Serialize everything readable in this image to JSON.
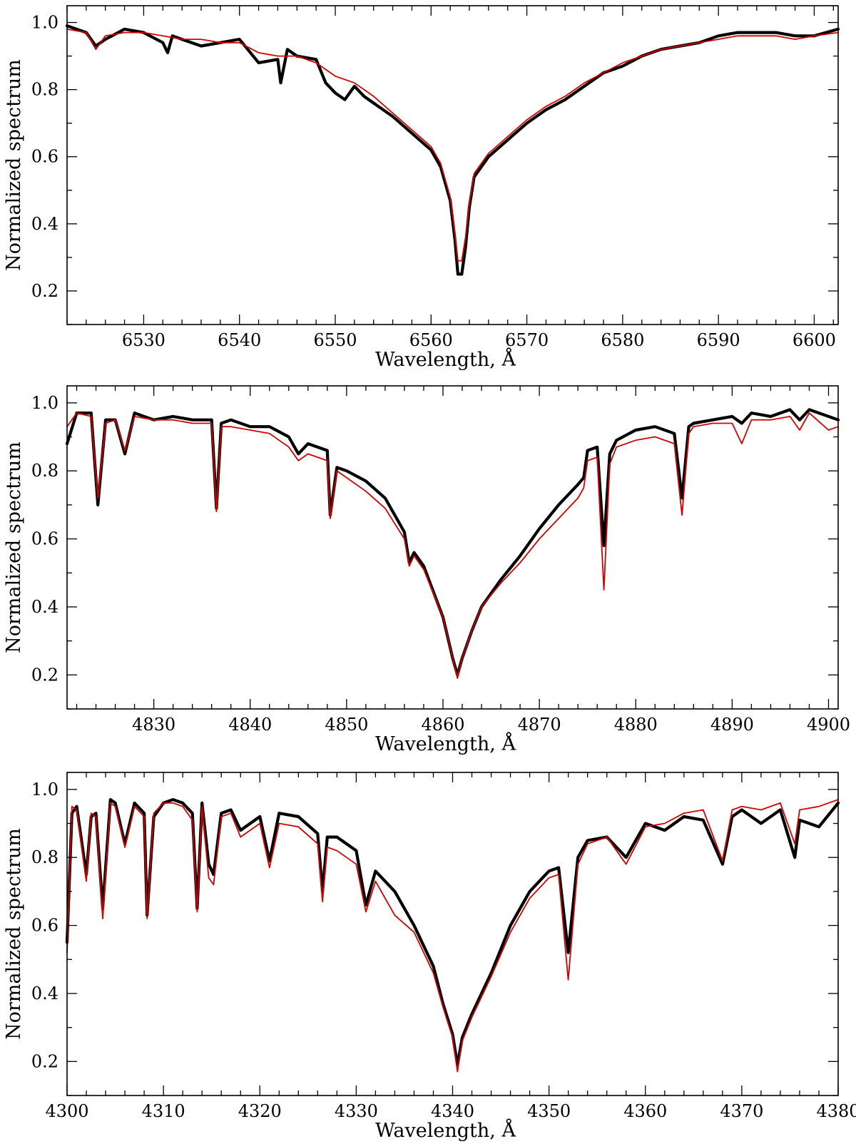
{
  "chart_data": [
    {
      "type": "line",
      "title": "",
      "xlabel": "Wavelength, Å",
      "ylabel": "Normalized spectrum",
      "xlim": [
        6522,
        6602.5
      ],
      "ylim": [
        0.1,
        1.05
      ],
      "xticks": [
        6530,
        6540,
        6550,
        6560,
        6570,
        6580,
        6590,
        6600
      ],
      "xtick_labels": [
        "6530",
        "6540",
        "6550",
        "6560",
        "6570",
        "6580",
        "6590",
        "6600"
      ],
      "yticks": [
        0.2,
        0.4,
        0.6,
        0.8,
        1.0
      ],
      "ytick_labels": [
        "0.2",
        "0.4",
        "0.6",
        "0.8",
        "1.0"
      ],
      "grid": false,
      "legend": null,
      "series": [
        {
          "role": "observed",
          "color": "#000000",
          "x": [
            6522,
            6524,
            6525,
            6526,
            6528,
            6530,
            6532,
            6532.5,
            6533,
            6534,
            6536,
            6538,
            6540,
            6542,
            6544,
            6544.3,
            6545,
            6546,
            6548,
            6549,
            6550,
            6551,
            6552,
            6553,
            6554,
            6556,
            6558,
            6560,
            6561,
            6562,
            6562.5,
            6562.8,
            6563.2,
            6563.6,
            6564,
            6564.5,
            6566,
            6568,
            6570,
            6572,
            6574,
            6575,
            6576,
            6578,
            6580,
            6582,
            6584,
            6586,
            6588,
            6590,
            6592,
            6594,
            6596,
            6598,
            6600,
            6602.5
          ],
          "y": [
            0.99,
            0.97,
            0.93,
            0.95,
            0.98,
            0.97,
            0.94,
            0.91,
            0.96,
            0.95,
            0.93,
            0.94,
            0.95,
            0.88,
            0.89,
            0.82,
            0.92,
            0.9,
            0.89,
            0.82,
            0.79,
            0.77,
            0.81,
            0.78,
            0.76,
            0.72,
            0.67,
            0.62,
            0.57,
            0.47,
            0.35,
            0.25,
            0.25,
            0.33,
            0.45,
            0.54,
            0.6,
            0.65,
            0.7,
            0.74,
            0.77,
            0.79,
            0.81,
            0.85,
            0.87,
            0.9,
            0.92,
            0.93,
            0.94,
            0.96,
            0.97,
            0.97,
            0.97,
            0.96,
            0.96,
            0.98
          ]
        },
        {
          "role": "model",
          "color": "#d40000",
          "x": [
            6522,
            6524,
            6525,
            6526,
            6528,
            6530,
            6532,
            6534,
            6536,
            6538,
            6540,
            6542,
            6544,
            6546,
            6548,
            6550,
            6552,
            6554,
            6556,
            6558,
            6560,
            6561,
            6562,
            6562.5,
            6562.8,
            6563.2,
            6563.6,
            6564,
            6564.5,
            6566,
            6568,
            6570,
            6572,
            6574,
            6576,
            6578,
            6580,
            6582,
            6584,
            6586,
            6588,
            6590,
            6592,
            6594,
            6596,
            6598,
            6600,
            6602.5
          ],
          "y": [
            0.98,
            0.97,
            0.92,
            0.96,
            0.97,
            0.97,
            0.96,
            0.95,
            0.95,
            0.94,
            0.94,
            0.91,
            0.9,
            0.9,
            0.88,
            0.84,
            0.82,
            0.78,
            0.73,
            0.68,
            0.63,
            0.58,
            0.48,
            0.37,
            0.29,
            0.29,
            0.36,
            0.46,
            0.55,
            0.61,
            0.66,
            0.71,
            0.75,
            0.78,
            0.82,
            0.85,
            0.88,
            0.9,
            0.92,
            0.93,
            0.94,
            0.95,
            0.96,
            0.96,
            0.96,
            0.95,
            0.96,
            0.97
          ]
        }
      ]
    },
    {
      "type": "line",
      "title": "",
      "xlabel": "Wavelength, Å",
      "ylabel": "Normalized spectrum",
      "xlim": [
        4821,
        4901
      ],
      "ylim": [
        0.1,
        1.05
      ],
      "xticks": [
        4830,
        4840,
        4850,
        4860,
        4870,
        4880,
        4890,
        4900
      ],
      "xtick_labels": [
        "4830",
        "4840",
        "4850",
        "4860",
        "4870",
        "4880",
        "4890",
        "4900"
      ],
      "yticks": [
        0.2,
        0.4,
        0.6,
        0.8,
        1.0
      ],
      "ytick_labels": [
        "0.2",
        "0.4",
        "0.6",
        "0.8",
        "1.0"
      ],
      "grid": false,
      "legend": null,
      "series": [
        {
          "role": "observed",
          "color": "#000000",
          "x": [
            4821,
            4822,
            4823.5,
            4824.2,
            4825,
            4826,
            4827,
            4828,
            4830,
            4832,
            4834,
            4836,
            4836.5,
            4837,
            4838,
            4840,
            4842,
            4844,
            4845,
            4846,
            4848,
            4848.3,
            4849,
            4850,
            4852,
            4854,
            4856,
            4856.5,
            4857,
            4858,
            4860,
            4861,
            4861.5,
            4862,
            4863,
            4864,
            4866,
            4868,
            4870,
            4872,
            4874,
            4874.6,
            4875,
            4876,
            4876.7,
            4877.3,
            4878,
            4880,
            4882,
            4884,
            4884.8,
            4885.5,
            4886,
            4888,
            4890,
            4891,
            4892,
            4894,
            4896,
            4897,
            4898,
            4900,
            4901
          ],
          "y": [
            0.88,
            0.97,
            0.97,
            0.7,
            0.95,
            0.95,
            0.85,
            0.97,
            0.95,
            0.96,
            0.95,
            0.95,
            0.69,
            0.94,
            0.95,
            0.93,
            0.93,
            0.9,
            0.85,
            0.88,
            0.86,
            0.67,
            0.81,
            0.8,
            0.77,
            0.72,
            0.62,
            0.53,
            0.56,
            0.52,
            0.37,
            0.25,
            0.2,
            0.25,
            0.33,
            0.4,
            0.48,
            0.55,
            0.63,
            0.7,
            0.76,
            0.78,
            0.86,
            0.87,
            0.58,
            0.85,
            0.89,
            0.92,
            0.93,
            0.91,
            0.72,
            0.93,
            0.94,
            0.95,
            0.96,
            0.94,
            0.97,
            0.96,
            0.98,
            0.95,
            0.98,
            0.96,
            0.95
          ]
        },
        {
          "role": "model",
          "color": "#d40000",
          "x": [
            4821,
            4822,
            4823.5,
            4824.2,
            4825,
            4826,
            4827,
            4828,
            4830,
            4832,
            4834,
            4836,
            4836.5,
            4837,
            4838,
            4840,
            4842,
            4844,
            4845,
            4846,
            4848,
            4848.3,
            4849,
            4850,
            4852,
            4854,
            4856,
            4856.5,
            4857,
            4858,
            4860,
            4861,
            4861.5,
            4862,
            4863,
            4864,
            4866,
            4868,
            4870,
            4872,
            4874,
            4874.6,
            4875,
            4876,
            4876.7,
            4877.3,
            4878,
            4880,
            4882,
            4884,
            4884.8,
            4885.5,
            4886,
            4888,
            4890,
            4891,
            4892,
            4894,
            4896,
            4897,
            4898,
            4900,
            4901
          ],
          "y": [
            0.93,
            0.97,
            0.96,
            0.72,
            0.94,
            0.95,
            0.86,
            0.96,
            0.95,
            0.95,
            0.94,
            0.94,
            0.68,
            0.93,
            0.93,
            0.92,
            0.91,
            0.87,
            0.83,
            0.85,
            0.83,
            0.66,
            0.8,
            0.78,
            0.74,
            0.69,
            0.6,
            0.52,
            0.55,
            0.51,
            0.37,
            0.25,
            0.19,
            0.25,
            0.33,
            0.4,
            0.47,
            0.53,
            0.6,
            0.66,
            0.72,
            0.75,
            0.83,
            0.84,
            0.45,
            0.82,
            0.87,
            0.89,
            0.9,
            0.88,
            0.67,
            0.91,
            0.93,
            0.94,
            0.94,
            0.88,
            0.95,
            0.95,
            0.96,
            0.92,
            0.97,
            0.92,
            0.93
          ]
        }
      ]
    },
    {
      "type": "line",
      "title": "",
      "xlabel": "Wavelength, Å",
      "ylabel": "Normalized spectrum",
      "xlim": [
        4300,
        4380
      ],
      "ylim": [
        0.1,
        1.05
      ],
      "xticks": [
        4300,
        4310,
        4320,
        4330,
        4340,
        4350,
        4360,
        4370,
        4380
      ],
      "xtick_labels": [
        "4300",
        "4310",
        "4320",
        "4330",
        "4340",
        "4350",
        "4360",
        "4370",
        "4380"
      ],
      "yticks": [
        0.2,
        0.4,
        0.6,
        0.8,
        1.0
      ],
      "ytick_labels": [
        "0.2",
        "0.4",
        "0.6",
        "0.8",
        "1.0"
      ],
      "grid": false,
      "legend": null,
      "series": [
        {
          "role": "observed",
          "color": "#000000",
          "x": [
            4300,
            4300.5,
            4301,
            4302,
            4302.5,
            4303,
            4303.7,
            4304.5,
            4305,
            4306,
            4307,
            4308,
            4308.3,
            4309,
            4310,
            4311,
            4312,
            4313,
            4313.5,
            4314,
            4314.7,
            4315.2,
            4316,
            4317,
            4318,
            4320,
            4321,
            4322,
            4324,
            4326,
            4326.5,
            4327,
            4328,
            4330,
            4331,
            4332,
            4334,
            4336,
            4338,
            4339,
            4340,
            4340.5,
            4341,
            4342,
            4344,
            4346,
            4348,
            4350,
            4351,
            4352,
            4353,
            4354,
            4356,
            4358,
            4360,
            4362,
            4364,
            4366,
            4368,
            4369,
            4370,
            4372,
            4374,
            4375.5,
            4376,
            4378,
            4380
          ],
          "y": [
            0.55,
            0.93,
            0.95,
            0.75,
            0.92,
            0.93,
            0.65,
            0.97,
            0.96,
            0.84,
            0.96,
            0.93,
            0.63,
            0.92,
            0.96,
            0.97,
            0.96,
            0.93,
            0.65,
            0.96,
            0.78,
            0.75,
            0.93,
            0.94,
            0.88,
            0.92,
            0.79,
            0.93,
            0.92,
            0.87,
            0.7,
            0.86,
            0.86,
            0.82,
            0.66,
            0.76,
            0.7,
            0.6,
            0.48,
            0.37,
            0.28,
            0.19,
            0.27,
            0.34,
            0.46,
            0.6,
            0.7,
            0.76,
            0.77,
            0.52,
            0.8,
            0.85,
            0.86,
            0.8,
            0.9,
            0.88,
            0.92,
            0.91,
            0.78,
            0.92,
            0.94,
            0.9,
            0.94,
            0.8,
            0.91,
            0.89,
            0.96
          ]
        },
        {
          "role": "model",
          "color": "#d40000",
          "x": [
            4300,
            4300.5,
            4301,
            4302,
            4302.5,
            4303,
            4303.7,
            4304.5,
            4305,
            4306,
            4307,
            4308,
            4308.3,
            4309,
            4310,
            4311,
            4312,
            4313,
            4313.5,
            4314,
            4314.7,
            4315.2,
            4316,
            4317,
            4318,
            4320,
            4321,
            4322,
            4324,
            4326,
            4326.5,
            4327,
            4328,
            4330,
            4331,
            4332,
            4334,
            4336,
            4338,
            4339,
            4340,
            4340.5,
            4341,
            4342,
            4344,
            4346,
            4348,
            4350,
            4351,
            4352,
            4353,
            4354,
            4356,
            4358,
            4360,
            4362,
            4364,
            4366,
            4368,
            4369,
            4370,
            4372,
            4374,
            4375.5,
            4376,
            4378,
            4380
          ],
          "y": [
            0.52,
            0.95,
            0.94,
            0.73,
            0.93,
            0.92,
            0.62,
            0.96,
            0.95,
            0.83,
            0.95,
            0.92,
            0.62,
            0.93,
            0.96,
            0.96,
            0.95,
            0.91,
            0.64,
            0.95,
            0.74,
            0.72,
            0.92,
            0.93,
            0.86,
            0.9,
            0.77,
            0.9,
            0.89,
            0.84,
            0.67,
            0.83,
            0.82,
            0.78,
            0.64,
            0.73,
            0.63,
            0.58,
            0.46,
            0.36,
            0.27,
            0.17,
            0.26,
            0.33,
            0.45,
            0.58,
            0.68,
            0.74,
            0.75,
            0.44,
            0.78,
            0.84,
            0.86,
            0.78,
            0.89,
            0.9,
            0.93,
            0.94,
            0.79,
            0.94,
            0.95,
            0.94,
            0.96,
            0.84,
            0.94,
            0.95,
            0.97
          ]
        }
      ]
    }
  ]
}
